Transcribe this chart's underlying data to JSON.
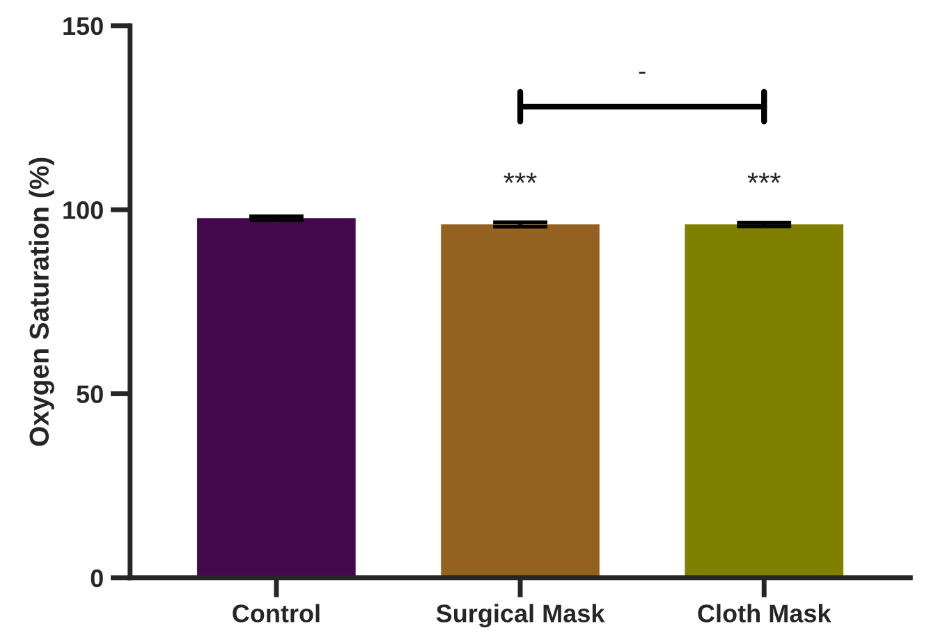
{
  "chart_data": {
    "type": "bar",
    "ylabel": "Oxygen Saturation (%)",
    "categories": [
      "Control",
      "Surgical Mask",
      "Cloth Mask"
    ],
    "values": [
      97.7,
      96.0,
      96.0
    ],
    "errors": [
      0.5,
      0.6,
      0.5
    ],
    "colors": [
      "#44084f",
      "#936120",
      "#7f7f00"
    ],
    "ylim": [
      0,
      150
    ],
    "yticks": [
      0,
      50,
      100,
      150
    ],
    "annotations": [
      "***",
      "***",
      "-"
    ],
    "grid": false
  }
}
